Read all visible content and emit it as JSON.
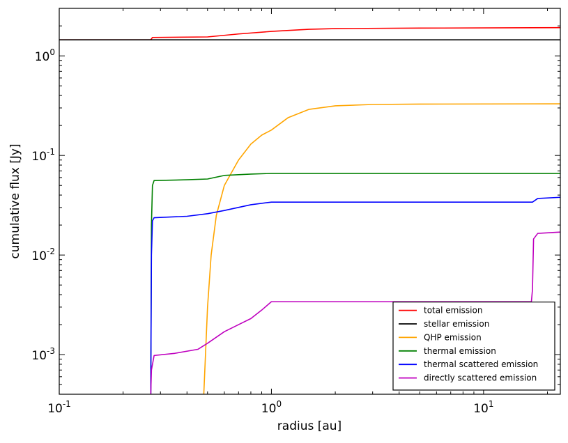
{
  "chart_data": {
    "type": "line",
    "xlabel": "radius [au]",
    "ylabel": "cumulative flux [Jy]",
    "xscale": "log",
    "yscale": "log",
    "xlim": [
      0.1,
      23.0
    ],
    "ylim": [
      0.0004,
      3.0
    ],
    "x_ticks": [
      {
        "value": 0.1,
        "base": "10",
        "exp": "-1"
      },
      {
        "value": 1,
        "base": "10",
        "exp": "0"
      },
      {
        "value": 10,
        "base": "10",
        "exp": "1"
      }
    ],
    "y_ticks": [
      {
        "value": 0.001,
        "base": "10",
        "exp": "-3"
      },
      {
        "value": 0.01,
        "base": "10",
        "exp": "-2"
      },
      {
        "value": 0.1,
        "base": "10",
        "exp": "-1"
      },
      {
        "value": 1,
        "base": "10",
        "exp": "0"
      }
    ],
    "grid": false,
    "legend_position": "lower-right",
    "series": [
      {
        "name": "total emission",
        "color": "#ff0000",
        "points": [
          [
            0.1,
            1.45
          ],
          [
            0.27,
            1.45
          ],
          [
            0.275,
            1.53
          ],
          [
            0.5,
            1.55
          ],
          [
            0.7,
            1.66
          ],
          [
            1.0,
            1.76
          ],
          [
            1.5,
            1.85
          ],
          [
            2.0,
            1.88
          ],
          [
            5.0,
            1.9
          ],
          [
            23.0,
            1.92
          ]
        ]
      },
      {
        "name": "stellar emission",
        "color": "#000000",
        "points": [
          [
            0.1,
            1.45
          ],
          [
            23.0,
            1.45
          ]
        ]
      },
      {
        "name": "QHP emission",
        "color": "#ffa500",
        "points": [
          [
            0.48,
            0.0004
          ],
          [
            0.5,
            0.003
          ],
          [
            0.52,
            0.01
          ],
          [
            0.55,
            0.025
          ],
          [
            0.6,
            0.05
          ],
          [
            0.7,
            0.09
          ],
          [
            0.8,
            0.13
          ],
          [
            0.9,
            0.16
          ],
          [
            1.0,
            0.18
          ],
          [
            1.2,
            0.24
          ],
          [
            1.5,
            0.29
          ],
          [
            2.0,
            0.315
          ],
          [
            3.0,
            0.325
          ],
          [
            5.0,
            0.328
          ],
          [
            23.0,
            0.33
          ]
        ]
      },
      {
        "name": "thermal emission",
        "color": "#008000",
        "points": [
          [
            0.27,
            0.0004
          ],
          [
            0.272,
            0.02
          ],
          [
            0.275,
            0.05
          ],
          [
            0.28,
            0.056
          ],
          [
            0.4,
            0.057
          ],
          [
            0.5,
            0.058
          ],
          [
            0.6,
            0.063
          ],
          [
            0.8,
            0.065
          ],
          [
            1.0,
            0.066
          ],
          [
            5.0,
            0.066
          ],
          [
            23.0,
            0.066
          ]
        ]
      },
      {
        "name": "thermal scattered emission",
        "color": "#0000ff",
        "points": [
          [
            0.27,
            0.0004
          ],
          [
            0.272,
            0.01
          ],
          [
            0.275,
            0.022
          ],
          [
            0.28,
            0.0237
          ],
          [
            0.4,
            0.0245
          ],
          [
            0.5,
            0.026
          ],
          [
            0.6,
            0.028
          ],
          [
            0.8,
            0.032
          ],
          [
            1.0,
            0.034
          ],
          [
            5.0,
            0.034
          ],
          [
            17.0,
            0.034
          ],
          [
            18.0,
            0.037
          ],
          [
            23.0,
            0.038
          ]
        ]
      },
      {
        "name": "directly scattered emission",
        "color": "#bf00bf",
        "points": [
          [
            0.27,
            0.0004
          ],
          [
            0.272,
            0.0007
          ],
          [
            0.28,
            0.00098
          ],
          [
            0.35,
            0.00103
          ],
          [
            0.45,
            0.00113
          ],
          [
            0.5,
            0.0013
          ],
          [
            0.6,
            0.0017
          ],
          [
            0.7,
            0.002
          ],
          [
            0.8,
            0.0023
          ],
          [
            0.9,
            0.0028
          ],
          [
            1.0,
            0.0034
          ],
          [
            2.0,
            0.0034
          ],
          [
            10.0,
            0.0034
          ],
          [
            16.8,
            0.0034
          ],
          [
            17.0,
            0.0045
          ],
          [
            17.2,
            0.0145
          ],
          [
            18.0,
            0.0165
          ],
          [
            23.0,
            0.017
          ]
        ]
      }
    ]
  }
}
